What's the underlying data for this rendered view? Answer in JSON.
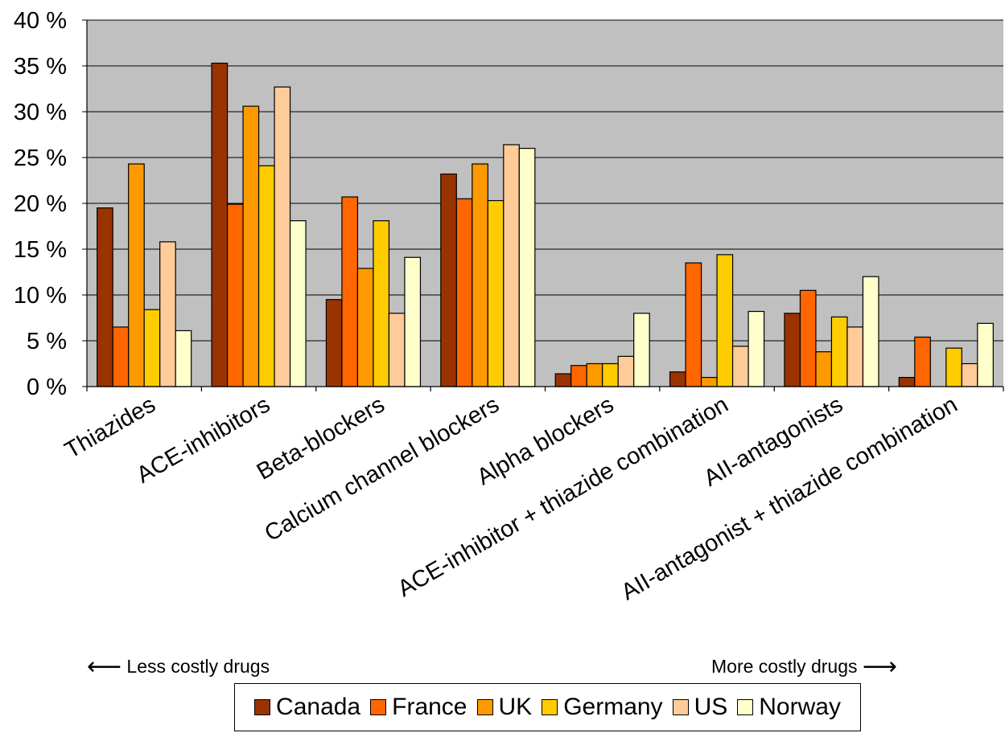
{
  "chart_data": {
    "type": "bar",
    "categories": [
      "Thiazides",
      "ACE-inhibitors",
      "Beta-blockers",
      "Calcium channel blockers",
      "Alpha blockers",
      "ACE-inhibitor + thiazide combination",
      "AII-antagonists",
      "AII-antagonist + thiazide combination"
    ],
    "series": [
      {
        "name": "Canada",
        "color": "#993300",
        "values": [
          19.5,
          35.3,
          9.5,
          23.2,
          1.4,
          1.6,
          8.0,
          1.0
        ]
      },
      {
        "name": "France",
        "color": "#FF6600",
        "values": [
          6.5,
          19.9,
          20.7,
          20.5,
          2.3,
          13.5,
          10.5,
          5.4
        ]
      },
      {
        "name": "UK",
        "color": "#FF9900",
        "values": [
          24.3,
          30.6,
          12.9,
          24.3,
          2.5,
          1.0,
          3.8,
          0
        ]
      },
      {
        "name": "Germany",
        "color": "#FFCC00",
        "values": [
          8.4,
          24.1,
          18.1,
          20.3,
          2.5,
          14.4,
          7.6,
          4.2
        ]
      },
      {
        "name": "US",
        "color": "#FFCC99",
        "values": [
          15.8,
          32.7,
          8.0,
          26.4,
          3.3,
          4.4,
          6.5,
          2.5
        ]
      },
      {
        "name": "Norway",
        "color": "#FFFFCC",
        "values": [
          6.1,
          18.1,
          14.1,
          26.0,
          8.0,
          8.2,
          12.0,
          6.9
        ]
      }
    ],
    "ylim": [
      0,
      40
    ],
    "yticks": [
      0,
      5,
      10,
      15,
      20,
      25,
      30,
      35,
      40
    ],
    "ytick_suffix": " %",
    "plot_background": "#C0C0C0",
    "grid": true,
    "legend_position": "bottom"
  },
  "notes": {
    "left_arrow": "⟵",
    "left_text": "Less costly drugs",
    "right_text": "More costly drugs",
    "right_arrow": "⟶"
  }
}
